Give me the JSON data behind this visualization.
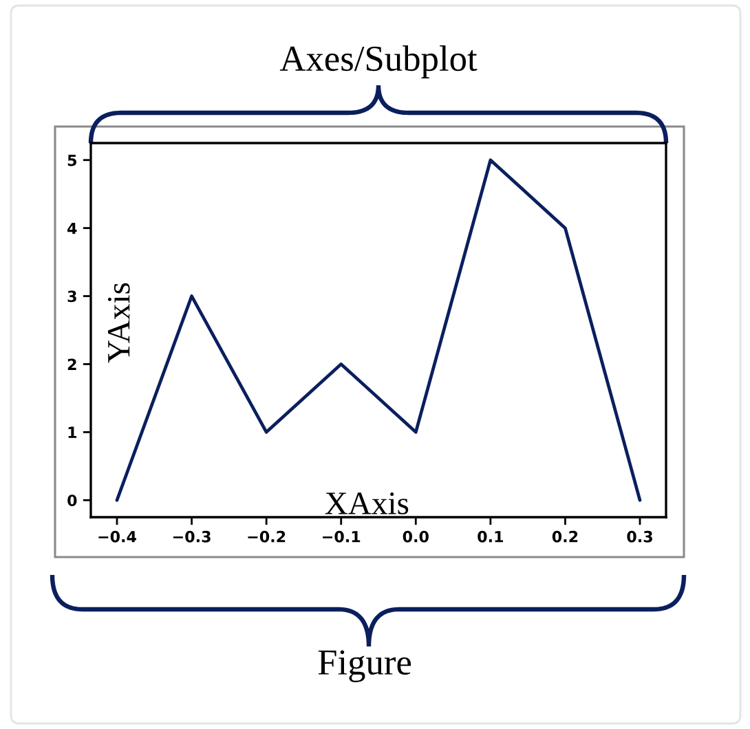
{
  "chart_data": {
    "type": "line",
    "x": [
      -0.4,
      -0.3,
      -0.2,
      -0.1,
      0.0,
      0.1,
      0.2,
      0.3
    ],
    "values": [
      0,
      3,
      1,
      2,
      1,
      5,
      4,
      0
    ],
    "color": "#0b1f5e",
    "line_style": "solid",
    "xlabel": "XAxis",
    "ylabel": "YAxis",
    "xlim": [
      -0.435,
      0.335
    ],
    "ylim": [
      -0.25,
      5.25
    ],
    "xticks": [
      {
        "value": -0.4,
        "label": "−0.4"
      },
      {
        "value": -0.3,
        "label": "−0.3"
      },
      {
        "value": -0.2,
        "label": "−0.2"
      },
      {
        "value": -0.1,
        "label": "−0.1"
      },
      {
        "value": 0.0,
        "label": "0.0"
      },
      0.1,
      0.2,
      0.3
    ],
    "yticks": [
      0,
      1,
      2,
      3,
      4,
      5
    ],
    "annotations": [
      "Axes/Subplot",
      "Figure"
    ]
  }
}
